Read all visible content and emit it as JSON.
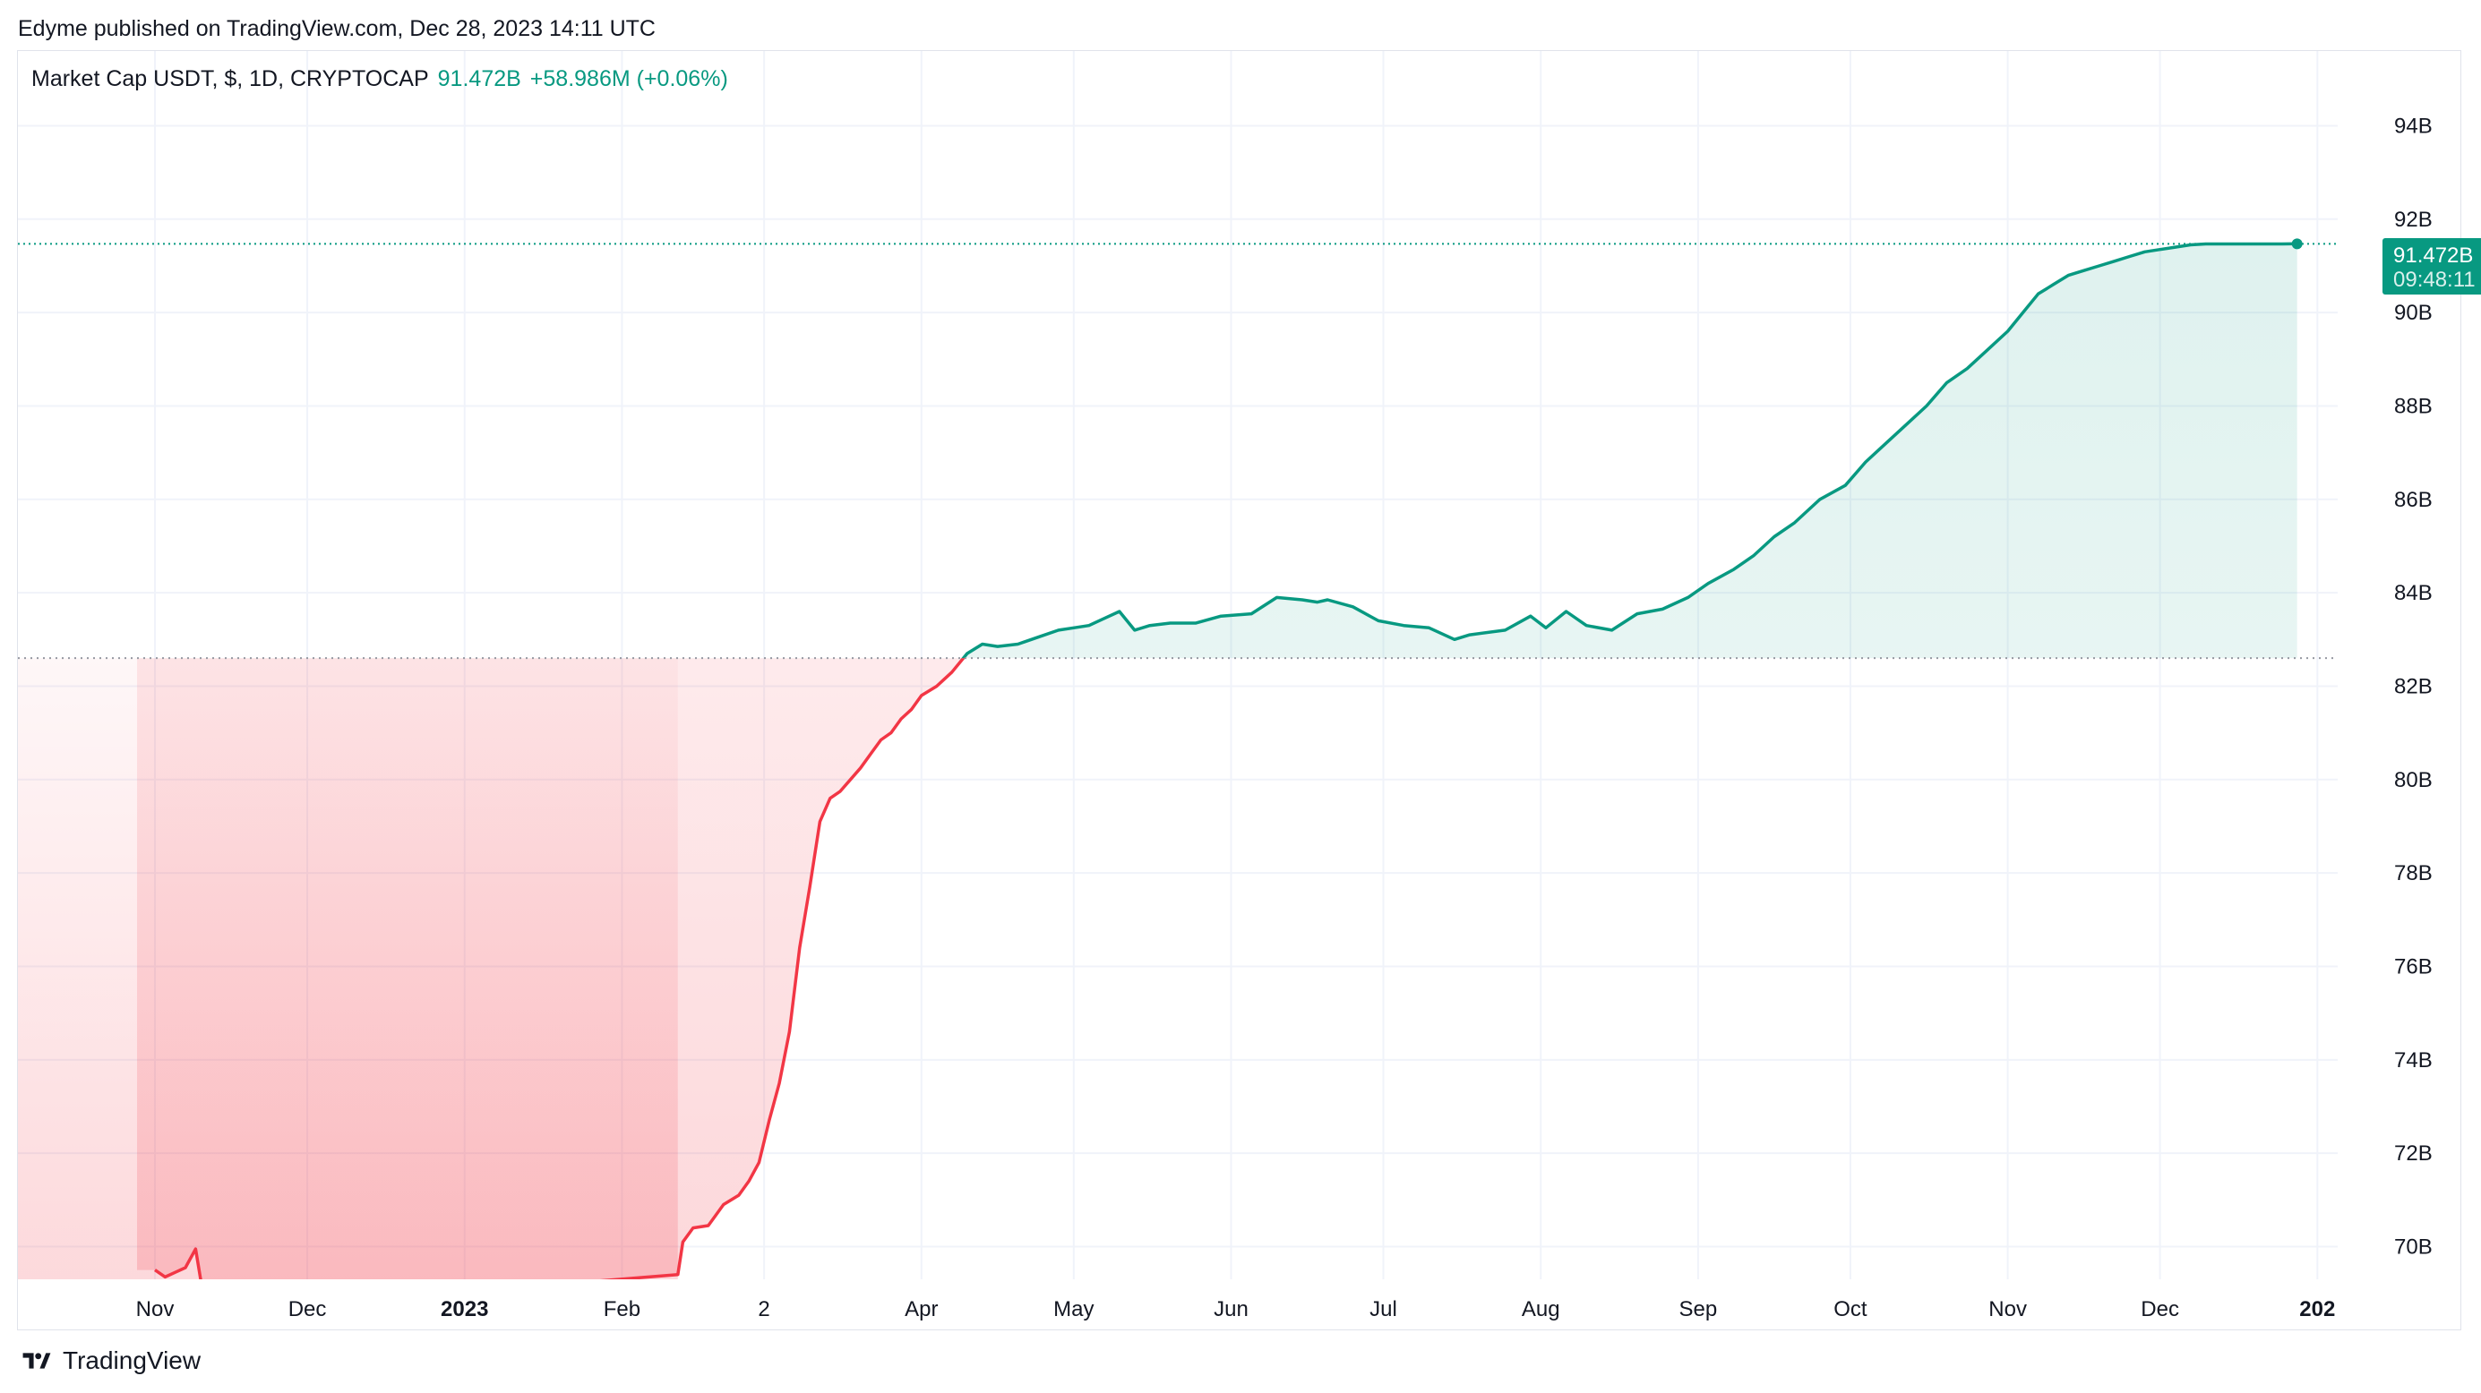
{
  "header": {
    "published_by": "Edyme published on TradingView.com, Dec 28, 2023 14:11 UTC"
  },
  "legend": {
    "symbol": "Market Cap USDT, $, 1D, CRYPTOCAP",
    "value": "91.472B",
    "change": "+58.986M (+0.06%)"
  },
  "price_label": {
    "value": "91.472B",
    "countdown": "09:48:11"
  },
  "footer": {
    "brand": "TradingView"
  },
  "colors": {
    "up": "#089981",
    "down": "#f23645",
    "grid": "#f0f3fa",
    "axis_text": "#131722"
  },
  "icons": [
    "tradingview-logo-icon"
  ],
  "chart_data": {
    "type": "area",
    "title": "Market Cap USDT",
    "ylabel": "",
    "xlabel": "",
    "y_unit": "B USD",
    "ylim": [
      69.3,
      95.6
    ],
    "baseline": 82.6,
    "last_value": 91.472,
    "y_ticks": [
      94,
      92,
      90,
      88,
      86,
      84,
      82,
      80,
      78,
      76,
      74,
      72,
      70
    ],
    "y_tick_labels": [
      "94B",
      "92B",
      "90B",
      "88B",
      "86B",
      "84B",
      "82B",
      "80B",
      "78B",
      "76B",
      "74B",
      "72B",
      "70B"
    ],
    "x_ticks": [
      {
        "date": "2022-11-01",
        "label": "Nov",
        "bold": false
      },
      {
        "date": "2022-12-01",
        "label": "Dec",
        "bold": false
      },
      {
        "date": "2023-01-01",
        "label": "2023",
        "bold": true
      },
      {
        "date": "2023-02-01",
        "label": "Feb",
        "bold": false
      },
      {
        "date": "2023-03-01",
        "label": "2",
        "bold": false
      },
      {
        "date": "2023-04-01",
        "label": "Apr",
        "bold": false
      },
      {
        "date": "2023-05-01",
        "label": "May",
        "bold": false
      },
      {
        "date": "2023-06-01",
        "label": "Jun",
        "bold": false
      },
      {
        "date": "2023-07-01",
        "label": "Jul",
        "bold": false
      },
      {
        "date": "2023-08-01",
        "label": "Aug",
        "bold": false
      },
      {
        "date": "2023-09-01",
        "label": "Sep",
        "bold": false
      },
      {
        "date": "2023-10-01",
        "label": "Oct",
        "bold": false
      },
      {
        "date": "2023-11-01",
        "label": "Nov",
        "bold": false
      },
      {
        "date": "2023-12-01",
        "label": "Dec",
        "bold": false
      },
      {
        "date": "2024-01-01",
        "label": "202",
        "bold": true
      }
    ],
    "series": [
      {
        "x": [
          "2022-11-01",
          "2022-11-03",
          "2022-11-05",
          "2022-11-07",
          "2022-11-09",
          "2022-11-10",
          "2022-11-11",
          "2022-11-12",
          "2023-02-12",
          "2023-02-13",
          "2023-02-15",
          "2023-02-18",
          "2023-02-21",
          "2023-02-24",
          "2023-02-26",
          "2023-02-28",
          "2023-03-02",
          "2023-03-04",
          "2023-03-06",
          "2023-03-08",
          "2023-03-10",
          "2023-03-12",
          "2023-03-14",
          "2023-03-16",
          "2023-03-18",
          "2023-03-20",
          "2023-03-22",
          "2023-03-24",
          "2023-03-26",
          "2023-03-28",
          "2023-03-30",
          "2023-04-01",
          "2023-04-04",
          "2023-04-07",
          "2023-04-10",
          "2023-04-13",
          "2023-04-16",
          "2023-04-20",
          "2023-04-24",
          "2023-04-28",
          "2023-05-01",
          "2023-05-04",
          "2023-05-07",
          "2023-05-10",
          "2023-05-13",
          "2023-05-16",
          "2023-05-20",
          "2023-05-25",
          "2023-05-30",
          "2023-06-05",
          "2023-06-10",
          "2023-06-15",
          "2023-06-18",
          "2023-06-20",
          "2023-06-25",
          "2023-06-30",
          "2023-07-05",
          "2023-07-10",
          "2023-07-15",
          "2023-07-18",
          "2023-07-25",
          "2023-07-30",
          "2023-08-02",
          "2023-08-06",
          "2023-08-10",
          "2023-08-15",
          "2023-08-20",
          "2023-08-25",
          "2023-08-30",
          "2023-09-03",
          "2023-09-08",
          "2023-09-12",
          "2023-09-16",
          "2023-09-20",
          "2023-09-25",
          "2023-09-30",
          "2023-10-04",
          "2023-10-08",
          "2023-10-12",
          "2023-10-16",
          "2023-10-20",
          "2023-10-24",
          "2023-10-28",
          "2023-11-01",
          "2023-11-04",
          "2023-11-07",
          "2023-11-10",
          "2023-11-13",
          "2023-11-16",
          "2023-11-19",
          "2023-11-22",
          "2023-11-25",
          "2023-11-28",
          "2023-12-01",
          "2023-12-04",
          "2023-12-07",
          "2023-12-10",
          "2023-12-13",
          "2023-12-16",
          "2023-12-19",
          "2023-12-22",
          "2023-12-25",
          "2023-12-28"
        ],
        "values": [
          69.5,
          69.35,
          69.45,
          69.55,
          69.95,
          69.3,
          68.9,
          68.6,
          69.4,
          70.1,
          70.4,
          70.45,
          70.9,
          71.1,
          71.4,
          71.8,
          72.7,
          73.5,
          74.6,
          76.4,
          77.7,
          79.1,
          79.6,
          79.75,
          80.0,
          80.25,
          80.55,
          80.85,
          81.0,
          81.3,
          81.5,
          81.8,
          82.0,
          82.3,
          82.7,
          82.9,
          82.85,
          82.9,
          83.05,
          83.2,
          83.25,
          83.3,
          83.45,
          83.6,
          83.2,
          83.3,
          83.35,
          83.35,
          83.5,
          83.55,
          83.9,
          83.85,
          83.8,
          83.85,
          83.7,
          83.4,
          83.3,
          83.25,
          83.0,
          83.1,
          83.2,
          83.5,
          83.25,
          83.6,
          83.3,
          83.2,
          83.55,
          83.65,
          83.9,
          84.2,
          84.5,
          84.8,
          85.2,
          85.5,
          86.0,
          86.3,
          86.8,
          87.2,
          87.6,
          88.0,
          88.5,
          88.8,
          89.2,
          89.6,
          90.0,
          90.4,
          90.6,
          90.8,
          90.9,
          91.0,
          91.1,
          91.2,
          91.3,
          91.35,
          91.4,
          91.45,
          91.47,
          91.47,
          91.47,
          91.47,
          91.47,
          91.47,
          91.472
        ]
      }
    ]
  }
}
